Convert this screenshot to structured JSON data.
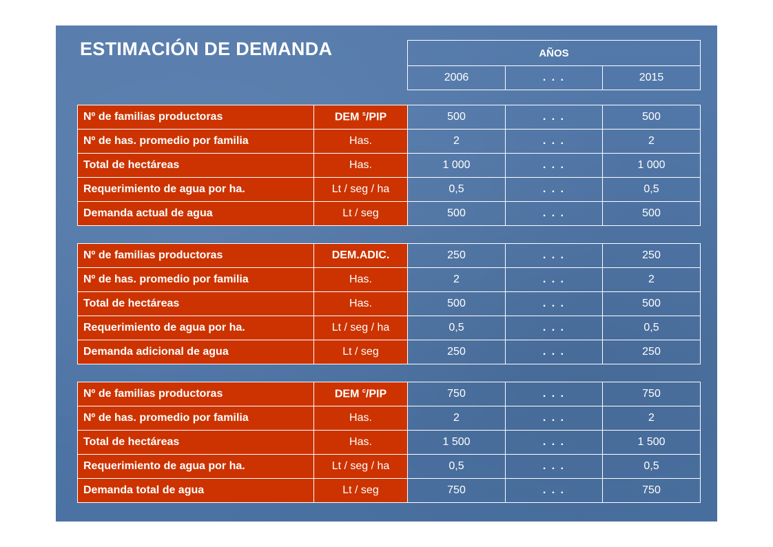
{
  "title": "ESTIMACIÓN DE DEMANDA",
  "years": {
    "header": "AÑOS",
    "cols": [
      "2006",
      ". . .",
      "2015"
    ]
  },
  "tables": [
    {
      "rows": [
        {
          "label": "Nº de familias productoras",
          "unit": "DEM s/PIP",
          "unit_main": "DEM ",
          "unit_sup": "s",
          "unit_tail": "/PIP",
          "v1": "500",
          "dots": ". . .",
          "v2": "500"
        },
        {
          "label": "Nº de has. promedio por familia",
          "unit": "Has.",
          "v1": "2",
          "dots": ". . .",
          "v2": "2"
        },
        {
          "label": "Total de hectáreas",
          "unit": "Has.",
          "v1": "1 000",
          "dots": ". . .",
          "v2": "1 000"
        },
        {
          "label": "Requerimiento de agua por ha.",
          "unit": "Lt / seg / ha",
          "v1": "0,5",
          "dots": ". . .",
          "v2": "0,5"
        },
        {
          "label": "Demanda actual de agua",
          "unit": "Lt / seg",
          "v1": "500",
          "dots": ". . .",
          "v2": "500"
        }
      ]
    },
    {
      "rows": [
        {
          "label": "Nº de familias productoras",
          "unit": "DEM.ADIC.",
          "v1": "250",
          "dots": ". . .",
          "v2": "250"
        },
        {
          "label": "Nº de has. promedio por familia",
          "unit": "Has.",
          "v1": "2",
          "dots": ". . .",
          "v2": "2"
        },
        {
          "label": "Total de hectáreas",
          "unit": "Has.",
          "v1": "500",
          "dots": ". . .",
          "v2": "500"
        },
        {
          "label": "Requerimiento de agua por ha.",
          "unit": "Lt / seg / ha",
          "v1": "0,5",
          "dots": ". . .",
          "v2": "0,5"
        },
        {
          "label": "Demanda adicional de agua",
          "unit": "Lt / seg",
          "v1": "250",
          "dots": ". . .",
          "v2": "250"
        }
      ]
    },
    {
      "rows": [
        {
          "label": "Nº de familias productoras",
          "unit": "DEM c/PIP",
          "unit_main": "DEM ",
          "unit_sup": "c",
          "unit_tail": "/PIP",
          "v1": "750",
          "dots": ". . .",
          "v2": "750"
        },
        {
          "label": "Nº de has. promedio por familia",
          "unit": "Has.",
          "v1": "2",
          "dots": ". . .",
          "v2": "2"
        },
        {
          "label": "Total de hectáreas",
          "unit": "Has.",
          "v1": "1 500",
          "dots": ". . .",
          "v2": "1 500"
        },
        {
          "label": "Requerimiento de agua por ha.",
          "unit": "Lt / seg / ha",
          "v1": "0,5",
          "dots": ". . .",
          "v2": "0,5"
        },
        {
          "label": "Demanda total de agua",
          "unit": "Lt / seg",
          "v1": "750",
          "dots": ". . .",
          "v2": "750"
        }
      ]
    }
  ]
}
